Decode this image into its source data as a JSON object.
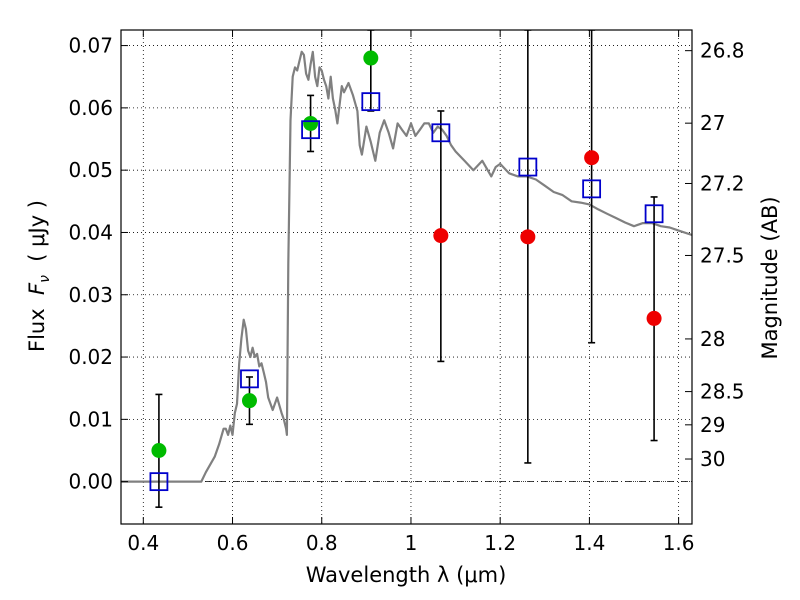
{
  "chart_data": {
    "type": "scatter",
    "xlabel": "Wavelength  λ (μm)",
    "ylabel": "Flux  F_ν  ( μJy )",
    "ylabel_parts": {
      "prefix": "Flux  ",
      "symbol": "F",
      "subscript": "ν",
      "suffix": "  ( μJy )"
    },
    "y2label": "Magnitude (AB)",
    "xlim": [
      0.35,
      1.63
    ],
    "ylim": [
      -0.0068,
      0.0725
    ],
    "grid": true,
    "x_ticks": [
      {
        "value": 0.4,
        "label": "0.4"
      },
      {
        "value": 0.6,
        "label": "0.6"
      },
      {
        "value": 0.8,
        "label": "0.8"
      },
      {
        "value": 1.0,
        "label": "1"
      },
      {
        "value": 1.2,
        "label": "1.2"
      },
      {
        "value": 1.4,
        "label": "1.4"
      },
      {
        "value": 1.6,
        "label": "1.6"
      }
    ],
    "y_ticks": [
      {
        "value": 0.0,
        "label": "0.00"
      },
      {
        "value": 0.01,
        "label": "0.01"
      },
      {
        "value": 0.02,
        "label": "0.02"
      },
      {
        "value": 0.03,
        "label": "0.03"
      },
      {
        "value": 0.04,
        "label": "0.04"
      },
      {
        "value": 0.05,
        "label": "0.05"
      },
      {
        "value": 0.06,
        "label": "0.06"
      },
      {
        "value": 0.07,
        "label": "0.07"
      }
    ],
    "y2_ticks": [
      {
        "value": 26.8,
        "label": "26.8"
      },
      {
        "value": 27.0,
        "label": "27"
      },
      {
        "value": 27.2,
        "label": "27.2"
      },
      {
        "value": 27.5,
        "label": "27.5"
      },
      {
        "value": 28.0,
        "label": "28"
      },
      {
        "value": 28.5,
        "label": "28.5"
      },
      {
        "value": 29.0,
        "label": "29"
      },
      {
        "value": 30.0,
        "label": "30"
      }
    ],
    "colors": {
      "model": "#808080",
      "observed": "#000000",
      "detection": "#00bb00",
      "upper": "#ee0000",
      "synthetic": "#0000cc",
      "grid": "#000000",
      "zero_line": "#000000"
    },
    "model_sed": {
      "x": [
        0.35,
        0.53,
        0.54,
        0.56,
        0.57,
        0.58,
        0.585,
        0.59,
        0.595,
        0.6,
        0.605,
        0.61,
        0.615,
        0.62,
        0.625,
        0.63,
        0.635,
        0.64,
        0.645,
        0.65,
        0.655,
        0.66,
        0.665,
        0.67,
        0.675,
        0.68,
        0.69,
        0.7,
        0.71,
        0.715,
        0.72,
        0.722,
        0.725,
        0.73,
        0.735,
        0.74,
        0.745,
        0.75,
        0.755,
        0.76,
        0.765,
        0.77,
        0.775,
        0.78,
        0.785,
        0.79,
        0.795,
        0.8,
        0.805,
        0.81,
        0.815,
        0.82,
        0.825,
        0.83,
        0.835,
        0.84,
        0.845,
        0.85,
        0.86,
        0.87,
        0.88,
        0.885,
        0.89,
        0.9,
        0.91,
        0.92,
        0.93,
        0.94,
        0.95,
        0.96,
        0.97,
        0.98,
        0.99,
        1.0,
        1.01,
        1.02,
        1.03,
        1.04,
        1.05,
        1.06,
        1.07,
        1.08,
        1.09,
        1.1,
        1.12,
        1.14,
        1.16,
        1.18,
        1.19,
        1.2,
        1.22,
        1.24,
        1.26,
        1.28,
        1.3,
        1.32,
        1.34,
        1.36,
        1.38,
        1.4,
        1.42,
        1.44,
        1.46,
        1.48,
        1.5,
        1.52,
        1.54,
        1.56,
        1.58,
        1.6,
        1.63
      ],
      "y": [
        0.0,
        0.0,
        0.0015,
        0.004,
        0.006,
        0.0085,
        0.0085,
        0.0075,
        0.009,
        0.0075,
        0.011,
        0.0125,
        0.019,
        0.023,
        0.026,
        0.0245,
        0.021,
        0.02,
        0.0215,
        0.02,
        0.0205,
        0.0185,
        0.019,
        0.0175,
        0.016,
        0.0135,
        0.0115,
        0.0135,
        0.011,
        0.01,
        0.0085,
        0.0075,
        0.035,
        0.058,
        0.065,
        0.0665,
        0.066,
        0.0675,
        0.069,
        0.0685,
        0.0655,
        0.0645,
        0.067,
        0.069,
        0.065,
        0.0635,
        0.0665,
        0.066,
        0.0645,
        0.0635,
        0.0615,
        0.065,
        0.0615,
        0.0598,
        0.0575,
        0.0605,
        0.0635,
        0.0625,
        0.064,
        0.062,
        0.0595,
        0.054,
        0.0525,
        0.057,
        0.0545,
        0.0515,
        0.056,
        0.058,
        0.056,
        0.0535,
        0.0575,
        0.0565,
        0.0555,
        0.0575,
        0.0555,
        0.0565,
        0.0575,
        0.0575,
        0.056,
        0.057,
        0.0565,
        0.0555,
        0.054,
        0.053,
        0.0515,
        0.05,
        0.0515,
        0.049,
        0.0505,
        0.051,
        0.0495,
        0.049,
        0.049,
        0.0485,
        0.0475,
        0.0465,
        0.046,
        0.045,
        0.0448,
        0.0445,
        0.0437,
        0.043,
        0.0423,
        0.0416,
        0.041,
        0.0415,
        0.0415,
        0.041,
        0.0408,
        0.0403,
        0.0396
      ]
    },
    "series": [
      {
        "marker": "circle",
        "points": [
          {
            "x": 0.435,
            "y": 0.005,
            "color": "detection"
          },
          {
            "x": 0.638,
            "y": 0.013,
            "color": "detection"
          },
          {
            "x": 0.775,
            "y": 0.0575,
            "color": "detection"
          },
          {
            "x": 0.91,
            "y": 0.068,
            "color": "detection"
          },
          {
            "x": 1.067,
            "y": 0.0395,
            "color": "upper"
          },
          {
            "x": 1.262,
            "y": 0.0393,
            "color": "upper"
          },
          {
            "x": 1.405,
            "y": 0.052,
            "color": "upper"
          },
          {
            "x": 1.545,
            "y": 0.0262,
            "color": "upper"
          }
        ]
      },
      {
        "marker": "errorbar",
        "points": [
          {
            "x": 0.435,
            "lo": -0.0041,
            "hi": 0.014
          },
          {
            "x": 0.638,
            "lo": 0.0092,
            "hi": 0.0168
          },
          {
            "x": 0.775,
            "lo": 0.053,
            "hi": 0.062
          },
          {
            "x": 0.91,
            "lo": 0.0595,
            "hi": 0.0725
          },
          {
            "x": 1.067,
            "lo": 0.0193,
            "hi": 0.0595
          },
          {
            "x": 1.262,
            "lo": 0.003,
            "hi": 0.0725
          },
          {
            "x": 1.405,
            "lo": 0.0223,
            "hi": 0.0725
          },
          {
            "x": 1.545,
            "lo": 0.0066,
            "hi": 0.0457
          }
        ]
      },
      {
        "marker": "square",
        "points": [
          {
            "x": 0.435,
            "y": 0.0
          },
          {
            "x": 0.638,
            "y": 0.0165
          },
          {
            "x": 0.775,
            "y": 0.0565
          },
          {
            "x": 0.91,
            "y": 0.061
          },
          {
            "x": 1.067,
            "y": 0.056
          },
          {
            "x": 1.262,
            "y": 0.0505
          },
          {
            "x": 1.405,
            "y": 0.047
          },
          {
            "x": 1.545,
            "y": 0.043
          }
        ]
      }
    ]
  }
}
